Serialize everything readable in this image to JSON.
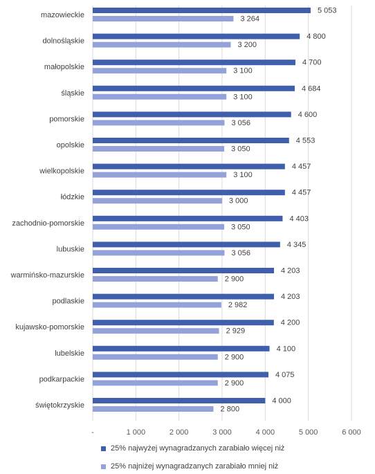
{
  "chart_data": {
    "type": "bar",
    "orientation": "horizontal",
    "categories": [
      "mazowieckie",
      "dolnośląskie",
      "małopolskie",
      "śląskie",
      "pomorskie",
      "opolskie",
      "wielkopolskie",
      "łódzkie",
      "zachodnio-pomorskie",
      "lubuskie",
      "warmińsko-mazurskie",
      "podlaskie",
      "kujawsko-pomorskie",
      "lubelskie",
      "podkarpackie",
      "świętokrzyskie"
    ],
    "series": [
      {
        "name": "25% najwyżej wynagradzanych zarabiało więcej niż",
        "color": "#3f5fad",
        "values": [
          5053,
          4800,
          4700,
          4684,
          4600,
          4553,
          4457,
          4457,
          4403,
          4345,
          4203,
          4203,
          4200,
          4100,
          4075,
          4000
        ],
        "labels": [
          "5 053",
          "4 800",
          "4 700",
          "4 684",
          "4 600",
          "4 553",
          "4 457",
          "4 457",
          "4 403",
          "4 345",
          "4 203",
          "4 203",
          "4 200",
          "4 100",
          "4 075",
          "4 000"
        ]
      },
      {
        "name": "25% najniżej wynagradzanych zarabiało mniej niż",
        "color": "#93a3d9",
        "values": [
          3264,
          3200,
          3100,
          3100,
          3056,
          3050,
          3100,
          3000,
          3050,
          3056,
          2900,
          2982,
          2929,
          2900,
          2900,
          2800
        ],
        "labels": [
          "3 264",
          "3 200",
          "3 100",
          "3 100",
          "3 056",
          "3 050",
          "3 100",
          "3 000",
          "3 050",
          "3 056",
          "2 900",
          "2 982",
          "2 929",
          "2 900",
          "2 900",
          "2 800"
        ]
      }
    ],
    "xlim": [
      0,
      6000
    ],
    "xticks": [
      0,
      1000,
      2000,
      3000,
      4000,
      5000,
      6000
    ],
    "xtick_labels": [
      "-",
      "1 000",
      "2 000",
      "3 000",
      "4 000",
      "5 000",
      "6 000"
    ],
    "grid": "vertical",
    "legend_position": "bottom"
  }
}
